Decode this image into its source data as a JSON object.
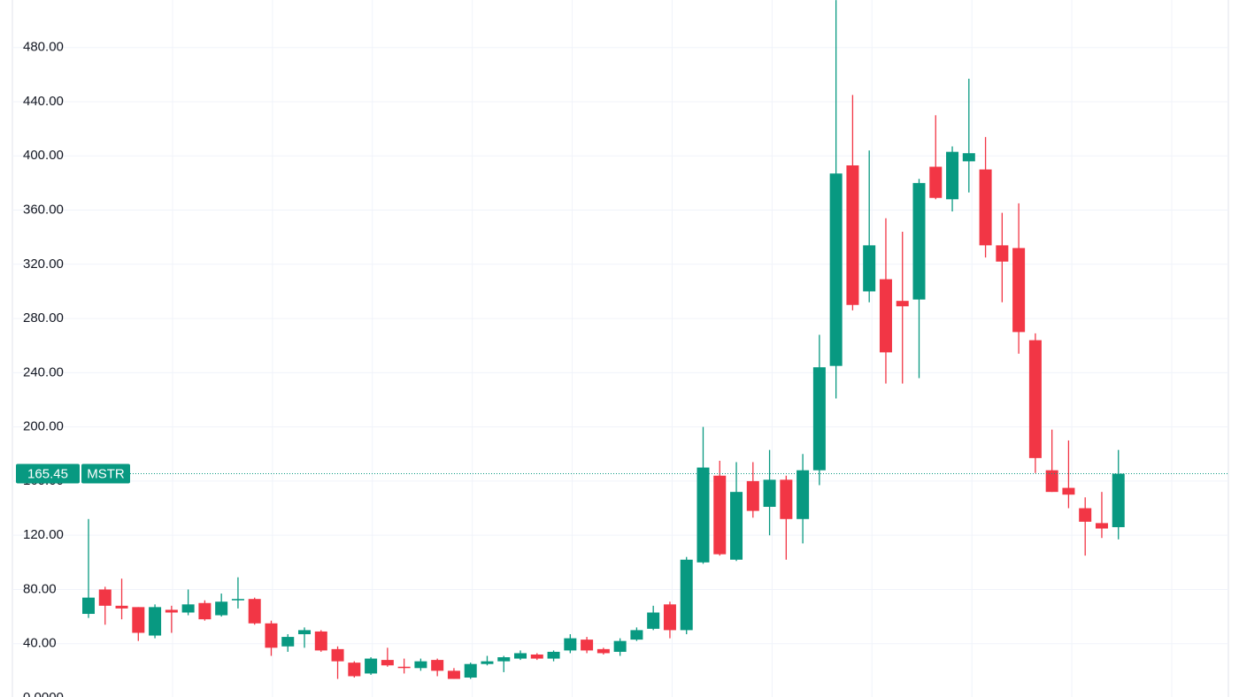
{
  "chart_data": {
    "type": "candlestick",
    "open": [
      62,
      80,
      68,
      67,
      46,
      65,
      63,
      70,
      61,
      72,
      73,
      55,
      38,
      47,
      49,
      36,
      26,
      18,
      28,
      23,
      22,
      28,
      20,
      15,
      25,
      27,
      29,
      32,
      29,
      35,
      43,
      36,
      34,
      43,
      51,
      69,
      50,
      100,
      164,
      102,
      160,
      141,
      161,
      132,
      168,
      245,
      393,
      300,
      309,
      293,
      294,
      392,
      368,
      396,
      390,
      334,
      332,
      264,
      168,
      155,
      140,
      129,
      126
    ],
    "high": [
      132,
      82,
      88,
      67,
      69,
      68,
      80,
      72,
      77,
      89,
      74,
      57,
      47,
      52,
      50,
      38,
      27,
      30,
      37,
      29,
      29,
      29,
      22,
      26,
      31,
      31,
      35,
      33,
      35,
      47,
      45,
      37,
      44,
      52,
      68,
      71,
      104,
      200,
      175,
      174,
      174,
      183,
      164,
      180,
      268,
      515,
      445,
      404,
      354,
      344,
      383,
      430,
      407,
      457,
      414,
      358,
      365,
      269,
      198,
      190,
      148,
      152,
      183
    ],
    "low": [
      59,
      54,
      58,
      42,
      44,
      48,
      61,
      57,
      60,
      66,
      54,
      31,
      34,
      37,
      34,
      14,
      15,
      17,
      23,
      18,
      20,
      16,
      14,
      14,
      24,
      19,
      28,
      28,
      27,
      33,
      33,
      32,
      31,
      42,
      50,
      44,
      47,
      99,
      105,
      101,
      133,
      120,
      102,
      114,
      157,
      221,
      286,
      292,
      232,
      232,
      236,
      368,
      359,
      373,
      325,
      292,
      254,
      166,
      152,
      140,
      105,
      118,
      117
    ],
    "close": [
      74,
      68,
      66,
      48,
      67,
      63,
      69,
      58,
      71,
      73,
      55,
      37,
      45,
      50,
      35,
      27,
      16,
      29,
      24,
      22,
      27,
      20,
      14,
      25,
      27,
      30,
      33,
      29,
      34,
      44,
      35,
      33,
      42,
      50,
      63,
      50,
      102,
      170,
      106,
      152,
      138,
      161,
      132,
      168,
      244,
      387,
      290,
      334,
      255,
      289,
      380,
      369,
      403,
      402,
      334,
      322,
      270,
      177,
      152,
      150,
      130,
      125,
      165.45
    ],
    "up_color": "#089981",
    "down_color": "#f23645",
    "ylim": [
      0,
      515
    ],
    "yticks": [
      {
        "value": 0,
        "label": "0.0000"
      },
      {
        "value": 40,
        "label": "40.00"
      },
      {
        "value": 80,
        "label": "80.00"
      },
      {
        "value": 120,
        "label": "120.00"
      },
      {
        "value": 160,
        "label": "160.00"
      },
      {
        "value": 200,
        "label": "200.00"
      },
      {
        "value": 240,
        "label": "240.00"
      },
      {
        "value": 280,
        "label": "280.00"
      },
      {
        "value": 320,
        "label": "320.00"
      },
      {
        "value": 360,
        "label": "360.00"
      },
      {
        "value": 400,
        "label": "400.00"
      },
      {
        "value": 440,
        "label": "440.00"
      },
      {
        "value": 480,
        "label": "480.00"
      }
    ],
    "grid": true,
    "last_price": 165.45,
    "symbol": "MSTR"
  }
}
